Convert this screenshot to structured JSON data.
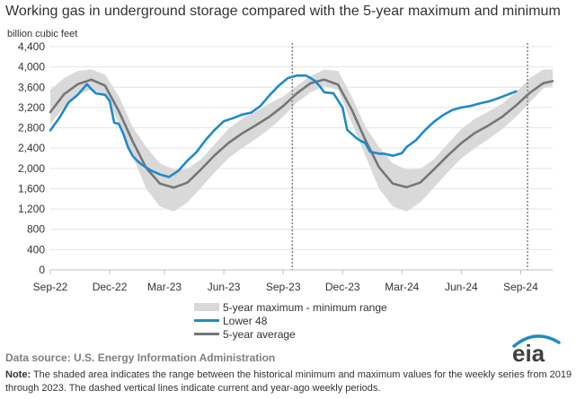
{
  "title": "Working gas in underground  storage compared with the 5-year maximum and minimum",
  "chart_data": {
    "type": "line",
    "title": "Working gas in underground  storage compared with the 5-year maximum and minimum",
    "ylabel": "billion cubic feet",
    "ylim": [
      0,
      4400
    ],
    "yticks": [
      0,
      400,
      800,
      1200,
      1600,
      2000,
      2400,
      2800,
      3200,
      3600,
      4000,
      4400
    ],
    "ytick_labels": [
      "0",
      "400",
      "800",
      "1,200",
      "1,600",
      "2,000",
      "2,400",
      "2,800",
      "3,200",
      "3,600",
      "4,000",
      "4,400"
    ],
    "xlim_weeks": [
      0,
      110
    ],
    "xticks": [
      {
        "label": "Sep-22",
        "week": 0
      },
      {
        "label": "Dec-22",
        "week": 13
      },
      {
        "label": "Mar-23",
        "week": 25
      },
      {
        "label": "Jun-23",
        "week": 38
      },
      {
        "label": "Sep-23",
        "week": 51
      },
      {
        "label": "Dec-23",
        "week": 64
      },
      {
        "label": "Mar-24",
        "week": 77
      },
      {
        "label": "Jun-24",
        "week": 90
      },
      {
        "label": "Sep-24",
        "week": 103
      }
    ],
    "reference_lines_weeks": [
      53,
      104.5
    ],
    "series": [
      {
        "name": "5-year maximum - minimum range",
        "kind": "band",
        "color": "#d9d9d9",
        "x": [
          0,
          3,
          6,
          9,
          12,
          15,
          18,
          21,
          24,
          27,
          30,
          33,
          36,
          39,
          42,
          45,
          48,
          51,
          54,
          57,
          60,
          63,
          66,
          69,
          72,
          75,
          78,
          81,
          84,
          87,
          90,
          93,
          96,
          99,
          102,
          105,
          108,
          110
        ],
        "max": [
          3550,
          3780,
          3920,
          3950,
          3850,
          3420,
          2820,
          2420,
          2100,
          1980,
          1990,
          2180,
          2480,
          2780,
          2980,
          3120,
          3280,
          3420,
          3630,
          3820,
          3950,
          3920,
          3420,
          2820,
          2420,
          2100,
          1980,
          1990,
          2180,
          2480,
          2780,
          2980,
          3120,
          3280,
          3500,
          3780,
          3950,
          3950
        ],
        "min": [
          2880,
          3200,
          3450,
          3560,
          3450,
          2900,
          2250,
          1600,
          1250,
          1150,
          1330,
          1620,
          1920,
          2200,
          2400,
          2580,
          2780,
          3020,
          3300,
          3500,
          3620,
          3550,
          2900,
          2250,
          1600,
          1250,
          1150,
          1330,
          1620,
          1920,
          2200,
          2400,
          2580,
          2780,
          3020,
          3300,
          3580,
          3620
        ]
      },
      {
        "name": "Lower 48",
        "kind": "line",
        "color": "#1f8ac9",
        "x": [
          0,
          2,
          4,
          6,
          8,
          9,
          10,
          12,
          13,
          14,
          15,
          16,
          17,
          18,
          19,
          20,
          22,
          24,
          26,
          28,
          30,
          32,
          34,
          36,
          38,
          40,
          42,
          44,
          46,
          48,
          50,
          52,
          54,
          56,
          57,
          58,
          59,
          60,
          62,
          64,
          65,
          66,
          67,
          68,
          69,
          70,
          72,
          73,
          75,
          77,
          78,
          80,
          82,
          84,
          86,
          88,
          90,
          92,
          94,
          96,
          98,
          100,
          102
        ],
        "values": [
          2750,
          3000,
          3300,
          3450,
          3660,
          3560,
          3480,
          3450,
          3330,
          2900,
          2880,
          2680,
          2420,
          2250,
          2150,
          2080,
          1960,
          1880,
          1830,
          1950,
          2150,
          2320,
          2560,
          2760,
          2930,
          2990,
          3060,
          3100,
          3230,
          3440,
          3630,
          3780,
          3830,
          3830,
          3780,
          3720,
          3620,
          3500,
          3480,
          3200,
          2760,
          2680,
          2600,
          2540,
          2500,
          2330,
          2290,
          2290,
          2250,
          2300,
          2420,
          2550,
          2750,
          2920,
          3050,
          3150,
          3200,
          3230,
          3280,
          3320,
          3380,
          3450,
          3520
        ]
      },
      {
        "name": "5-year average",
        "kind": "line",
        "color": "#767676",
        "x": [
          0,
          3,
          6,
          9,
          12,
          15,
          18,
          21,
          24,
          27,
          30,
          33,
          36,
          39,
          42,
          45,
          48,
          51,
          54,
          57,
          60,
          63,
          66,
          69,
          72,
          75,
          78,
          81,
          84,
          87,
          90,
          93,
          96,
          99,
          102,
          105,
          108,
          110
        ],
        "values": [
          3110,
          3460,
          3660,
          3750,
          3630,
          3130,
          2540,
          2010,
          1700,
          1620,
          1720,
          1980,
          2260,
          2500,
          2690,
          2850,
          3020,
          3230,
          3480,
          3680,
          3750,
          3650,
          3160,
          2560,
          2020,
          1700,
          1630,
          1720,
          1980,
          2250,
          2500,
          2700,
          2850,
          3020,
          3240,
          3490,
          3680,
          3720
        ]
      }
    ],
    "legend": [
      "5-year maximum - minimum range",
      "Lower 48",
      "5-year average"
    ]
  },
  "legend": {
    "range_label": "5-year maximum - minimum range",
    "lower48_label": "Lower 48",
    "avg_label": "5-year average"
  },
  "source": "Data source:  U.S. Energy Information Administration",
  "note": {
    "label": "Note:",
    "text": " The shaded area indicates the range between the historical minimum and maximum values for the weekly series from 2019 through 2023. The dashed vertical lines indicate current and year-ago weekly periods."
  },
  "logo": {
    "text": "eia",
    "color": "#3f3f3f",
    "arc_color": "#1f8ac9"
  }
}
